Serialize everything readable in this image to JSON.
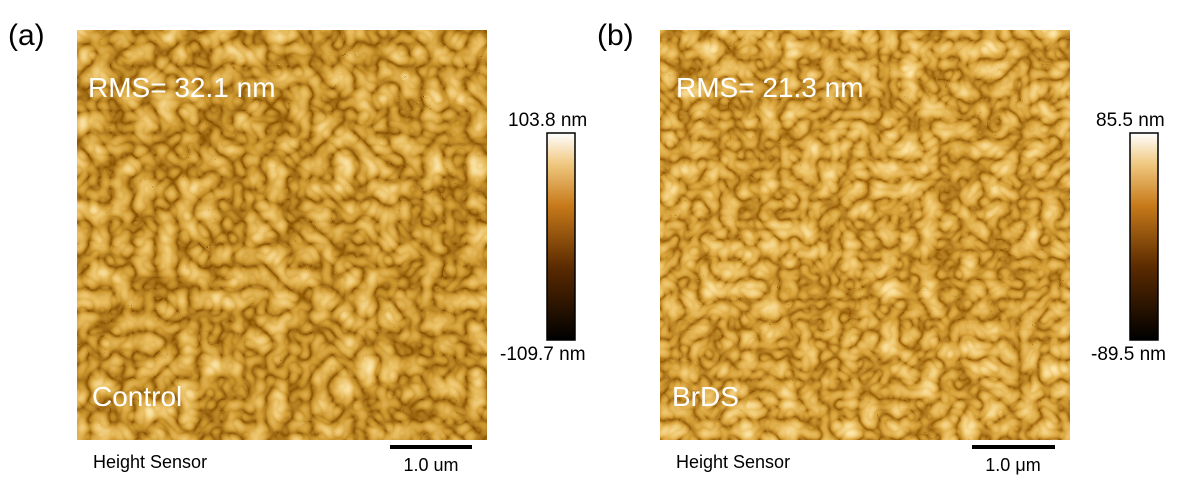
{
  "panels": [
    {
      "label": "(a)",
      "rms": "RMS= 32.1 nm",
      "sample": "Control",
      "colorbar_max": "103.8 nm",
      "colorbar_min": "-109.7 nm",
      "channel": "Height Sensor",
      "scale": "1.0 um"
    },
    {
      "label": "(b)",
      "rms": "RMS= 21.3 nm",
      "sample": "BrDS",
      "colorbar_max": "85.5 nm",
      "colorbar_min": "-89.5 nm",
      "channel": "Height Sensor",
      "scale": "1.0 μm"
    }
  ]
}
